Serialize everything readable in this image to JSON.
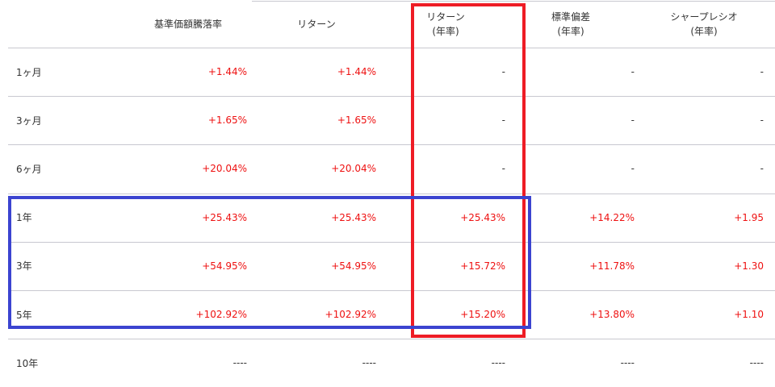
{
  "headers": [
    {
      "line1": "基準価額騰落率",
      "line2": ""
    },
    {
      "line1": "リターン",
      "line2": ""
    },
    {
      "line1": "リターン",
      "line2": "(年率)"
    },
    {
      "line1": "標準偏差",
      "line2": "(年率)"
    },
    {
      "line1": "シャープレシオ",
      "line2": "(年率)"
    }
  ],
  "rows": [
    {
      "period": "1ヶ月",
      "values": [
        "+1.44%",
        "+1.44%",
        "-",
        "-",
        "-"
      ]
    },
    {
      "period": "3ヶ月",
      "values": [
        "+1.65%",
        "+1.65%",
        "-",
        "-",
        "-"
      ]
    },
    {
      "period": "6ヶ月",
      "values": [
        "+20.04%",
        "+20.04%",
        "-",
        "-",
        "-"
      ]
    },
    {
      "period": "1年",
      "values": [
        "+25.43%",
        "+25.43%",
        "+25.43%",
        "+14.22%",
        "+1.95"
      ]
    },
    {
      "period": "3年",
      "values": [
        "+54.95%",
        "+54.95%",
        "+15.72%",
        "+11.78%",
        "+1.30"
      ]
    },
    {
      "period": "5年",
      "values": [
        "+102.92%",
        "+102.92%",
        "+15.20%",
        "+13.80%",
        "+1.10"
      ]
    },
    {
      "period": "10年",
      "values": [
        "----",
        "----",
        "----",
        "----",
        "----"
      ]
    }
  ],
  "colors": {
    "positive": "#ee1111",
    "highlight_column": "#ee1c25",
    "highlight_rows": "#3b44d0"
  }
}
